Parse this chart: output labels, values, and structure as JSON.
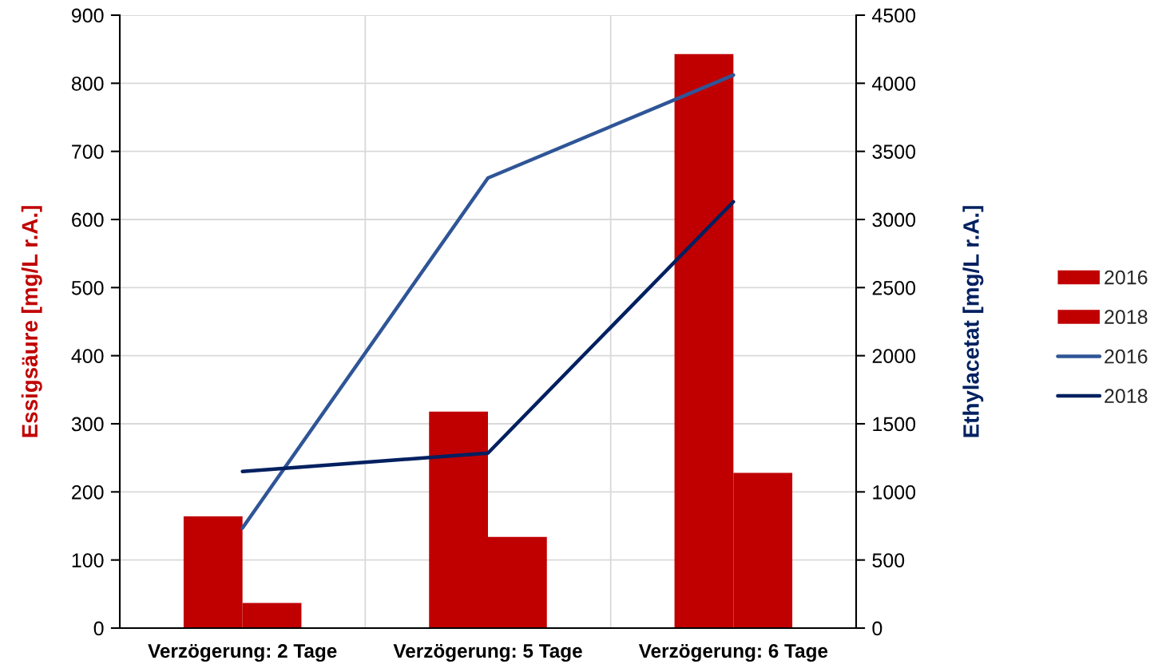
{
  "chart_data": {
    "type": "bar",
    "categories": [
      "Verzögerung: 2 Tage",
      "Verzögerung: 5 Tage",
      "Verzögerung: 6 Tage"
    ],
    "series": [
      {
        "name": "2016",
        "color": "#c00000",
        "values": [
          164,
          318,
          843
        ]
      },
      {
        "name": "2018",
        "color": "#c00000",
        "values": [
          37,
          134,
          228
        ]
      },
      {
        "name": "2016",
        "type": "line",
        "axis": "y2",
        "color": "#2f5597",
        "values": [
          735,
          3305,
          4060
        ]
      },
      {
        "name": "2018",
        "type": "line",
        "axis": "y2",
        "color": "#002060",
        "values": [
          1150,
          1285,
          3130
        ]
      }
    ],
    "ylabel": "Essigsäure [mg/L r.A.]",
    "y2label": "Ethylacetat [mg/L r.A.]",
    "ylim": [
      0,
      900
    ],
    "yticks": [
      0,
      100,
      200,
      300,
      400,
      500,
      600,
      700,
      800,
      900
    ],
    "y2lim": [
      0,
      4500
    ],
    "y2ticks": [
      0,
      500,
      1000,
      1500,
      2000,
      2500,
      3000,
      3500,
      4000,
      4500
    ],
    "grid": true,
    "legend": "right"
  }
}
